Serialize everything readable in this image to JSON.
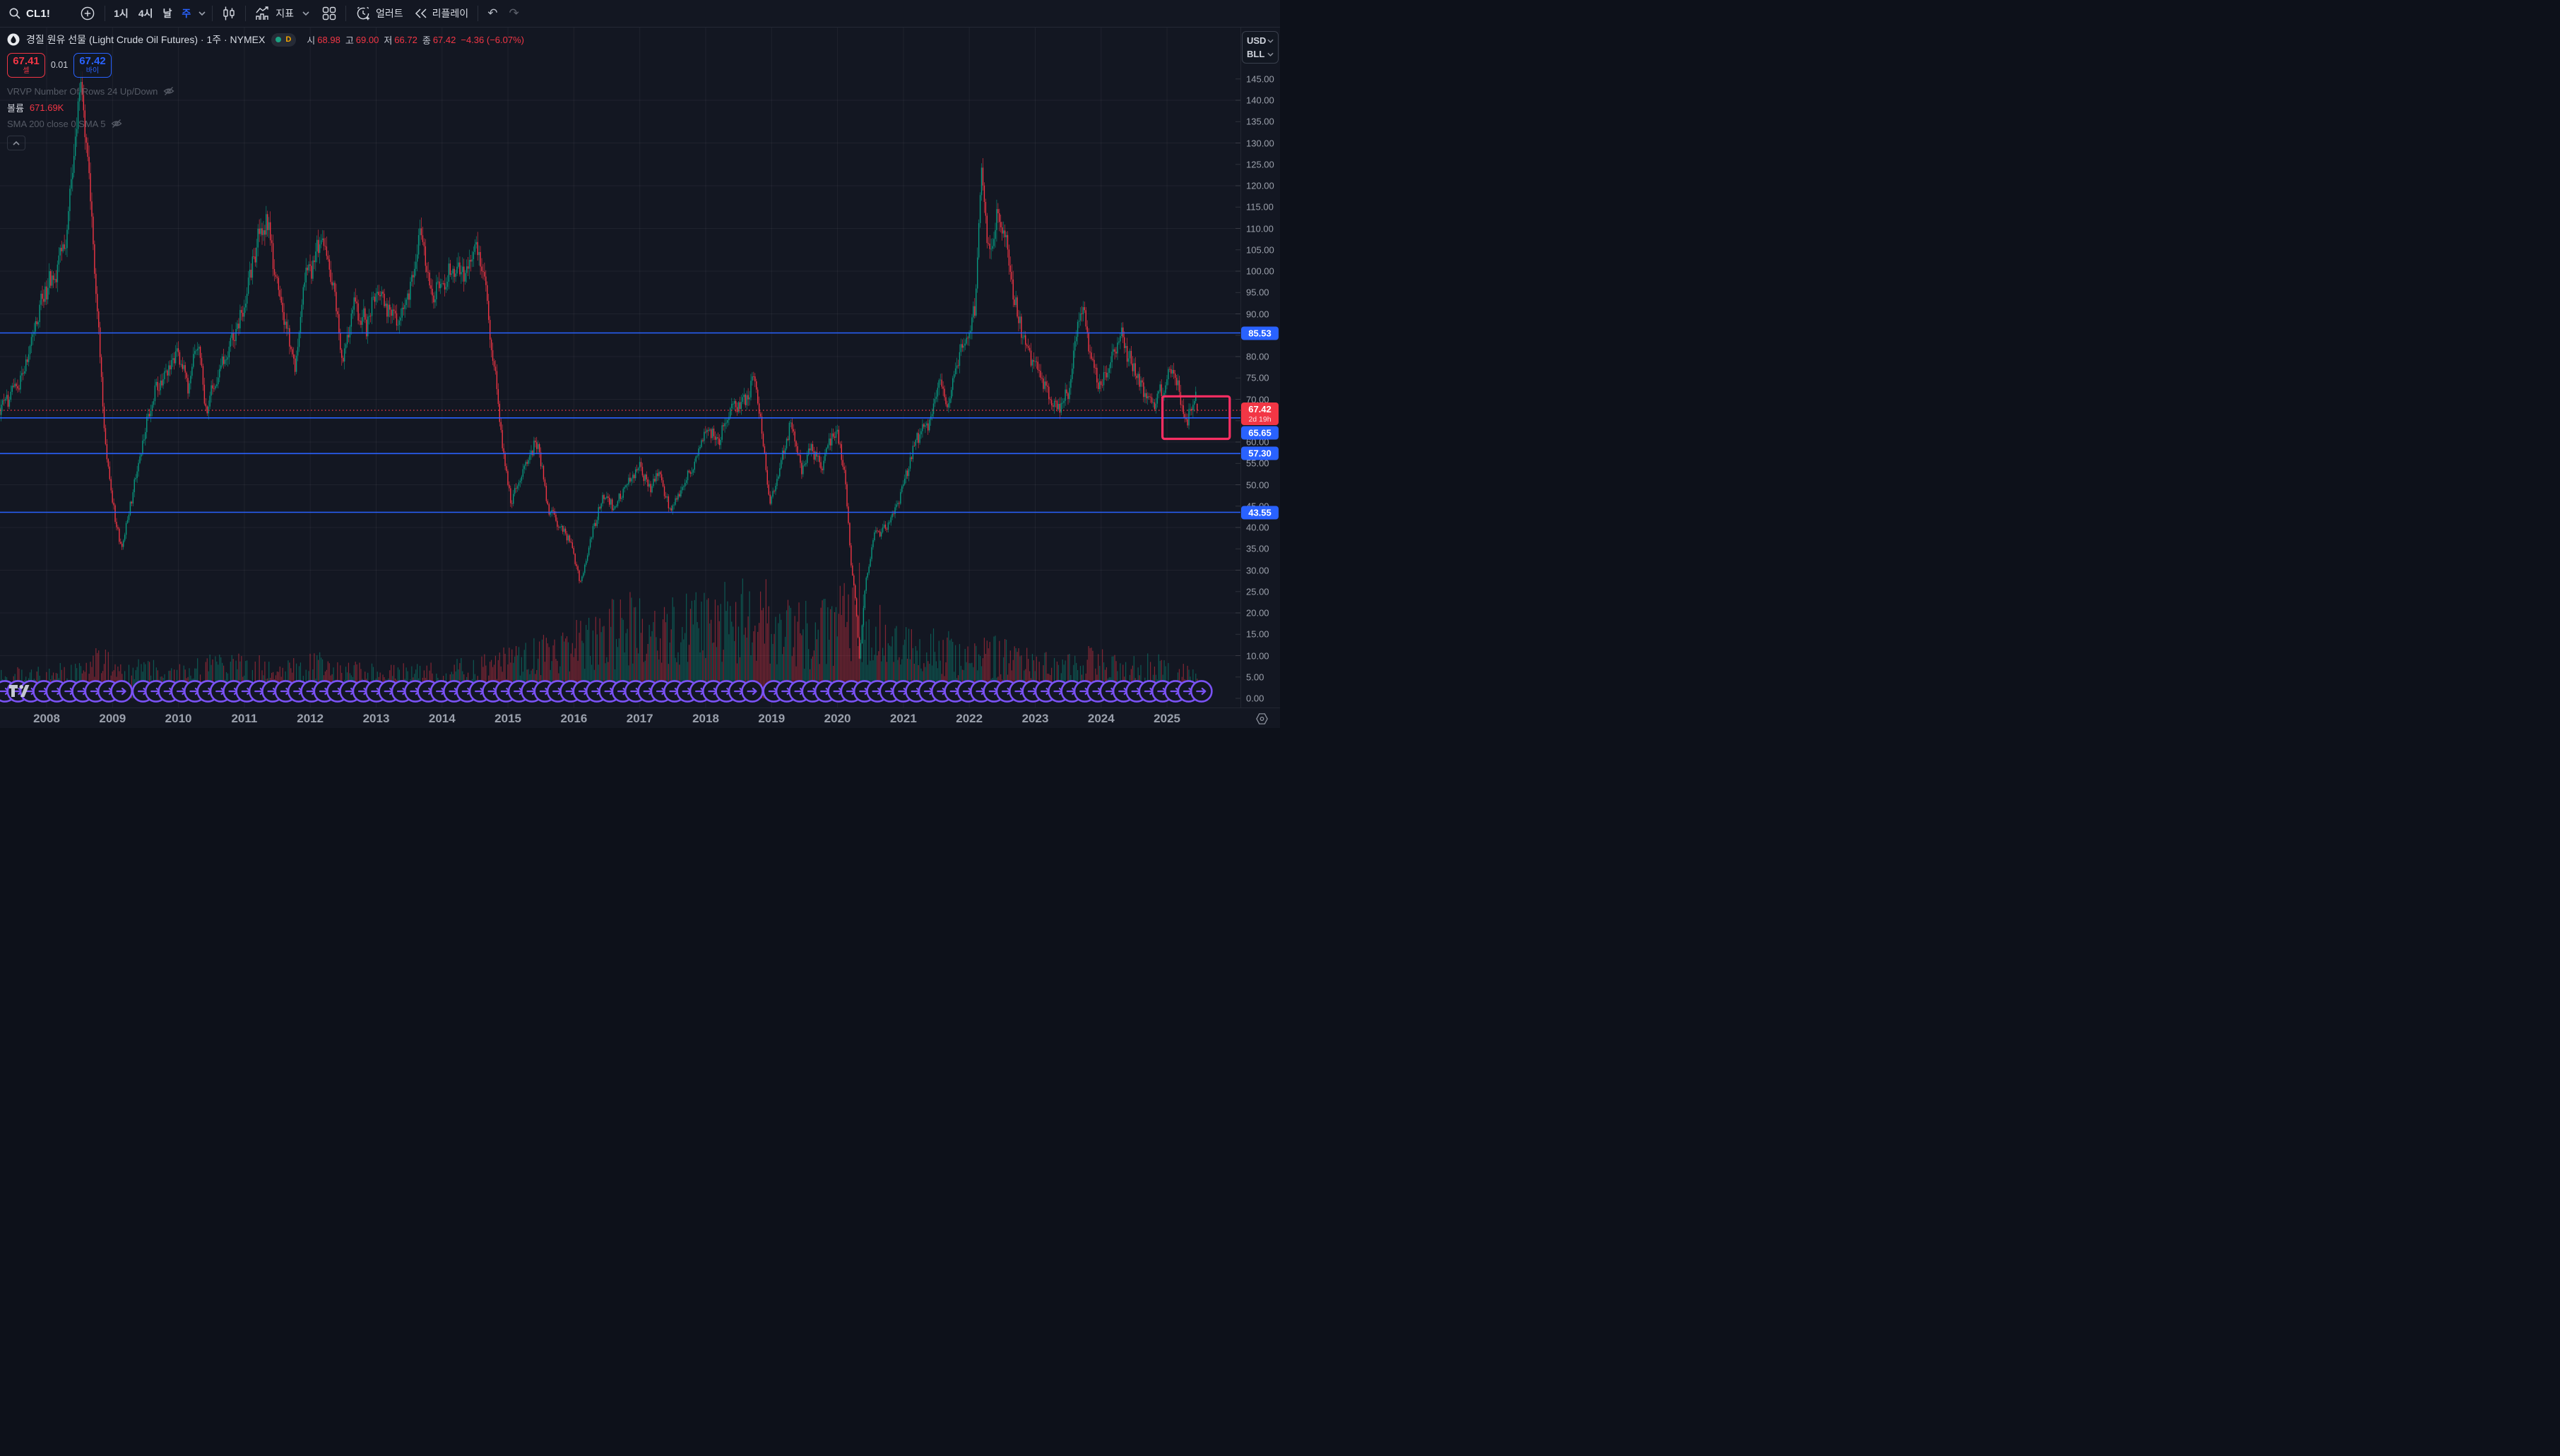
{
  "toolbar": {
    "symbol": "CL1!",
    "timeframes": [
      {
        "label": "1시"
      },
      {
        "label": "4시"
      },
      {
        "label": "날"
      },
      {
        "label": "주",
        "active": true
      }
    ],
    "indicators_label": "지표",
    "alert_label": "얼러트",
    "replay_label": "리플레이"
  },
  "symbol_info": {
    "title": "경질 원유 선물 (Light Crude Oil Futures) · 1주 · NYMEX",
    "badge_letter": "D",
    "ohlc": [
      {
        "label": "시",
        "value": "68.98"
      },
      {
        "label": "고",
        "value": "69.00"
      },
      {
        "label": "저",
        "value": "66.72"
      },
      {
        "label": "종",
        "value": "67.42"
      }
    ],
    "change": "−4.36 (−6.07%)"
  },
  "trade": {
    "sell_price": "67.41",
    "sell_label": "셀",
    "spread": "0.01",
    "buy_price": "67.42",
    "buy_label": "바이"
  },
  "legend": {
    "vrvp": "VRVP Number Of Rows 24 Up/Down",
    "volume_label": "볼륨",
    "volume_value": "671.69K",
    "sma": "SMA 200 close 0 SMA 5"
  },
  "price_scale": {
    "currency": "USD",
    "unit": "BLL",
    "ticks": [
      "145.00",
      "140.00",
      "135.00",
      "130.00",
      "125.00",
      "120.00",
      "115.00",
      "110.00",
      "105.00",
      "100.00",
      "95.00",
      "90.00",
      "85.00",
      "80.00",
      "75.00",
      "70.00",
      "65.00",
      "60.00",
      "55.00",
      "50.00",
      "45.00",
      "40.00",
      "35.00",
      "30.00",
      "25.00",
      "20.00",
      "15.00",
      "10.00",
      "5.00",
      "0.00"
    ],
    "labels": {
      "level1": "85.53",
      "last_price": "67.42",
      "countdown": "2d 19h",
      "level2": "65.65",
      "level3": "57.30",
      "level4": "43.55"
    }
  },
  "time_scale": {
    "years": [
      "2008",
      "2009",
      "2010",
      "2011",
      "2012",
      "2013",
      "2014",
      "2015",
      "2016",
      "2017",
      "2018",
      "2019",
      "2020",
      "2021",
      "2022",
      "2023",
      "2024",
      "2025"
    ]
  },
  "chart_data": {
    "type": "candlestick+volume",
    "symbol": "CL1!",
    "exchange": "NYMEX",
    "interval": "1주",
    "price_axis": {
      "min": 0,
      "max": 145,
      "tick_step": 5
    },
    "last_candle": {
      "open": 68.98,
      "high": 69.0,
      "low": 66.72,
      "close": 67.42,
      "change": -4.36,
      "change_pct": -6.07
    },
    "prev_close": 71.78,
    "price_anchors": [
      [
        2007.29,
        68
      ],
      [
        2007.6,
        74
      ],
      [
        2007.85,
        88
      ],
      [
        2008.0,
        96
      ],
      [
        2008.15,
        100
      ],
      [
        2008.3,
        108
      ],
      [
        2008.52,
        145.5
      ],
      [
        2008.62,
        128
      ],
      [
        2008.75,
        95
      ],
      [
        2008.9,
        58
      ],
      [
        2009.05,
        41
      ],
      [
        2009.14,
        35
      ],
      [
        2009.35,
        52
      ],
      [
        2009.6,
        70
      ],
      [
        2009.8,
        76
      ],
      [
        2010.0,
        81
      ],
      [
        2010.15,
        73
      ],
      [
        2010.3,
        83
      ],
      [
        2010.42,
        67
      ],
      [
        2010.6,
        76
      ],
      [
        2010.85,
        85
      ],
      [
        2011.0,
        92
      ],
      [
        2011.15,
        104
      ],
      [
        2011.33,
        113
      ],
      [
        2011.5,
        97
      ],
      [
        2011.62,
        88
      ],
      [
        2011.78,
        77
      ],
      [
        2011.9,
        98
      ],
      [
        2012.05,
        102
      ],
      [
        2012.2,
        108
      ],
      [
        2012.35,
        96
      ],
      [
        2012.5,
        79
      ],
      [
        2012.65,
        93
      ],
      [
        2012.85,
        87
      ],
      [
        2013.0,
        95
      ],
      [
        2013.2,
        91
      ],
      [
        2013.35,
        88
      ],
      [
        2013.55,
        97
      ],
      [
        2013.67,
        109
      ],
      [
        2013.85,
        94
      ],
      [
        2014.0,
        97
      ],
      [
        2014.2,
        101
      ],
      [
        2014.35,
        99
      ],
      [
        2014.5,
        106
      ],
      [
        2014.65,
        97
      ],
      [
        2014.8,
        76
      ],
      [
        2014.95,
        55
      ],
      [
        2015.05,
        46
      ],
      [
        2015.15,
        50
      ],
      [
        2015.3,
        56
      ],
      [
        2015.45,
        60
      ],
      [
        2015.6,
        45
      ],
      [
        2015.8,
        40
      ],
      [
        2015.95,
        37
      ],
      [
        2016.1,
        27
      ],
      [
        2016.3,
        40
      ],
      [
        2016.45,
        48
      ],
      [
        2016.6,
        44
      ],
      [
        2016.8,
        50
      ],
      [
        2017.0,
        54
      ],
      [
        2017.15,
        49
      ],
      [
        2017.3,
        53
      ],
      [
        2017.45,
        44
      ],
      [
        2017.6,
        48
      ],
      [
        2017.8,
        54
      ],
      [
        2018.0,
        63
      ],
      [
        2018.2,
        61
      ],
      [
        2018.4,
        68
      ],
      [
        2018.6,
        70
      ],
      [
        2018.75,
        75
      ],
      [
        2018.85,
        63
      ],
      [
        2018.97,
        45
      ],
      [
        2019.1,
        53
      ],
      [
        2019.3,
        65
      ],
      [
        2019.45,
        53
      ],
      [
        2019.6,
        59
      ],
      [
        2019.75,
        54
      ],
      [
        2019.9,
        61
      ],
      [
        2020.0,
        62
      ],
      [
        2020.12,
        51
      ],
      [
        2020.2,
        32
      ],
      [
        2020.28,
        22
      ],
      [
        2020.33,
        9
      ],
      [
        2020.42,
        26
      ],
      [
        2020.55,
        38
      ],
      [
        2020.75,
        40
      ],
      [
        2020.9,
        45
      ],
      [
        2021.05,
        53
      ],
      [
        2021.2,
        61
      ],
      [
        2021.4,
        65
      ],
      [
        2021.55,
        74
      ],
      [
        2021.68,
        69
      ],
      [
        2021.85,
        81
      ],
      [
        2022.0,
        86
      ],
      [
        2022.1,
        94
      ],
      [
        2022.19,
        126
      ],
      [
        2022.3,
        102
      ],
      [
        2022.42,
        114
      ],
      [
        2022.55,
        107
      ],
      [
        2022.7,
        92
      ],
      [
        2022.85,
        82
      ],
      [
        2023.0,
        78
      ],
      [
        2023.15,
        73
      ],
      [
        2023.3,
        68
      ],
      [
        2023.5,
        71
      ],
      [
        2023.65,
        89
      ],
      [
        2023.72,
        92
      ],
      [
        2023.85,
        79
      ],
      [
        2024.0,
        73
      ],
      [
        2024.15,
        79
      ],
      [
        2024.3,
        85
      ],
      [
        2024.45,
        79
      ],
      [
        2024.6,
        73
      ],
      [
        2024.75,
        69
      ],
      [
        2024.9,
        71
      ],
      [
        2025.0,
        74
      ],
      [
        2025.1,
        77
      ],
      [
        2025.2,
        70
      ],
      [
        2025.3,
        63
      ],
      [
        2025.38,
        70
      ],
      [
        2025.44,
        71.5
      ],
      [
        2025.47,
        67.5
      ]
    ],
    "volume_profile": [
      [
        2007.3,
        38
      ],
      [
        2008.3,
        45
      ],
      [
        2008.8,
        68
      ],
      [
        2009.3,
        50
      ],
      [
        2010.0,
        48
      ],
      [
        2010.8,
        60
      ],
      [
        2011.5,
        52
      ],
      [
        2012.2,
        58
      ],
      [
        2013.0,
        42
      ],
      [
        2014.0,
        46
      ],
      [
        2014.8,
        60
      ],
      [
        2015.3,
        72
      ],
      [
        2015.9,
        95
      ],
      [
        2016.3,
        115
      ],
      [
        2016.9,
        135
      ],
      [
        2017.5,
        128
      ],
      [
        2018.0,
        142
      ],
      [
        2018.8,
        158
      ],
      [
        2019.3,
        120
      ],
      [
        2019.9,
        132
      ],
      [
        2020.33,
        165
      ],
      [
        2020.7,
        112
      ],
      [
        2021.2,
        92
      ],
      [
        2021.8,
        82
      ],
      [
        2022.2,
        88
      ],
      [
        2022.8,
        64
      ],
      [
        2023.3,
        56
      ],
      [
        2023.8,
        68
      ],
      [
        2024.3,
        52
      ],
      [
        2024.8,
        58
      ],
      [
        2025.2,
        48
      ],
      [
        2025.47,
        40
      ]
    ],
    "horizontal_lines": [
      {
        "price": 85.53,
        "color": "#2962ff",
        "style": "solid"
      },
      {
        "price": 67.42,
        "color": "#f23645",
        "style": "dotted"
      },
      {
        "price": 65.65,
        "color": "#2962ff",
        "style": "solid"
      },
      {
        "price": 57.3,
        "color": "#2962ff",
        "style": "solid"
      },
      {
        "price": 43.55,
        "color": "#2962ff",
        "style": "solid"
      }
    ],
    "price_range_box": {
      "t_start": 2024.93,
      "t_end": 2025.95,
      "price_top": 70.7,
      "price_bottom": 60.75,
      "color": "#ff2e63"
    },
    "rollover_markers": {
      "count": 92,
      "color": "#7a52f4"
    },
    "colors": {
      "up": "#089981",
      "down": "#f23645",
      "background": "#131722",
      "grid": "rgba(255,255,255,0.05)",
      "line_blue": "#2962ff",
      "line_red": "#f23645"
    }
  }
}
